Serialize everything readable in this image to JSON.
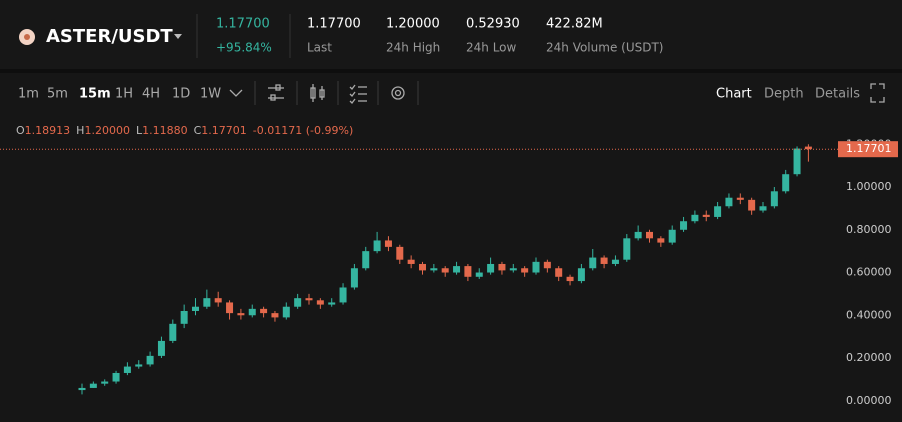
{
  "header": {
    "pair": "ASTER/USDT",
    "price": "1.17700",
    "change": "+95.84%",
    "stats": [
      {
        "value": "1.17700",
        "label": "Last"
      },
      {
        "value": "1.20000",
        "label": "24h High"
      },
      {
        "value": "0.52930",
        "label": "24h Low"
      },
      {
        "value": "422.82M",
        "label": "24h Volume (USDT)"
      }
    ]
  },
  "toolbar": {
    "intervals": [
      "1m",
      "5m",
      "15m",
      "1H",
      "4H",
      "1D",
      "1W"
    ],
    "active": "15m",
    "views": [
      "Chart",
      "Depth",
      "Details"
    ],
    "active_view": "Chart"
  },
  "chart_data": {
    "type": "candlestick",
    "ohlc_legend": {
      "open": {
        "key": "O",
        "value": 1.18913,
        "label": "1.18913"
      },
      "high": {
        "key": "H",
        "value": 1.2,
        "label": "1.20000"
      },
      "low": {
        "key": "L",
        "value": 1.1188,
        "label": "1.11880"
      },
      "close": {
        "key": "C",
        "value": 1.17701,
        "label": "1.17701"
      },
      "change": "-0.01171 (-0.99%)"
    },
    "candles": [
      [
        0.05,
        0.08,
        0.03,
        0.06
      ],
      [
        0.06,
        0.09,
        0.06,
        0.08
      ],
      [
        0.08,
        0.1,
        0.07,
        0.09
      ],
      [
        0.09,
        0.14,
        0.08,
        0.13
      ],
      [
        0.13,
        0.18,
        0.12,
        0.16
      ],
      [
        0.16,
        0.19,
        0.15,
        0.17
      ],
      [
        0.17,
        0.23,
        0.16,
        0.21
      ],
      [
        0.21,
        0.3,
        0.2,
        0.28
      ],
      [
        0.28,
        0.38,
        0.27,
        0.36
      ],
      [
        0.36,
        0.45,
        0.34,
        0.42
      ],
      [
        0.42,
        0.48,
        0.4,
        0.44
      ],
      [
        0.44,
        0.52,
        0.43,
        0.48
      ],
      [
        0.48,
        0.51,
        0.44,
        0.46
      ],
      [
        0.46,
        0.47,
        0.38,
        0.41
      ],
      [
        0.41,
        0.43,
        0.38,
        0.4
      ],
      [
        0.4,
        0.45,
        0.39,
        0.43
      ],
      [
        0.43,
        0.44,
        0.39,
        0.41
      ],
      [
        0.41,
        0.42,
        0.37,
        0.39
      ],
      [
        0.39,
        0.46,
        0.38,
        0.44
      ],
      [
        0.44,
        0.5,
        0.43,
        0.48
      ],
      [
        0.48,
        0.5,
        0.45,
        0.47
      ],
      [
        0.47,
        0.48,
        0.43,
        0.45
      ],
      [
        0.45,
        0.48,
        0.44,
        0.46
      ],
      [
        0.46,
        0.55,
        0.45,
        0.53
      ],
      [
        0.53,
        0.64,
        0.52,
        0.62
      ],
      [
        0.62,
        0.72,
        0.61,
        0.7
      ],
      [
        0.7,
        0.79,
        0.69,
        0.75
      ],
      [
        0.75,
        0.77,
        0.7,
        0.72
      ],
      [
        0.72,
        0.73,
        0.64,
        0.66
      ],
      [
        0.66,
        0.68,
        0.62,
        0.64
      ],
      [
        0.64,
        0.65,
        0.59,
        0.61
      ],
      [
        0.61,
        0.64,
        0.6,
        0.62
      ],
      [
        0.62,
        0.63,
        0.58,
        0.6
      ],
      [
        0.6,
        0.65,
        0.59,
        0.63
      ],
      [
        0.63,
        0.64,
        0.56,
        0.58
      ],
      [
        0.58,
        0.62,
        0.57,
        0.6
      ],
      [
        0.6,
        0.67,
        0.59,
        0.64
      ],
      [
        0.64,
        0.65,
        0.59,
        0.61
      ],
      [
        0.61,
        0.64,
        0.6,
        0.62
      ],
      [
        0.62,
        0.63,
        0.58,
        0.6
      ],
      [
        0.6,
        0.67,
        0.59,
        0.65
      ],
      [
        0.65,
        0.66,
        0.6,
        0.62
      ],
      [
        0.62,
        0.63,
        0.56,
        0.58
      ],
      [
        0.58,
        0.59,
        0.54,
        0.56
      ],
      [
        0.56,
        0.64,
        0.55,
        0.62
      ],
      [
        0.62,
        0.71,
        0.61,
        0.67
      ],
      [
        0.67,
        0.68,
        0.62,
        0.64
      ],
      [
        0.64,
        0.68,
        0.63,
        0.66
      ],
      [
        0.66,
        0.78,
        0.65,
        0.76
      ],
      [
        0.76,
        0.82,
        0.75,
        0.79
      ],
      [
        0.79,
        0.8,
        0.74,
        0.76
      ],
      [
        0.76,
        0.77,
        0.72,
        0.74
      ],
      [
        0.74,
        0.82,
        0.73,
        0.8
      ],
      [
        0.8,
        0.86,
        0.79,
        0.84
      ],
      [
        0.84,
        0.89,
        0.83,
        0.87
      ],
      [
        0.87,
        0.89,
        0.84,
        0.86
      ],
      [
        0.86,
        0.93,
        0.85,
        0.91
      ],
      [
        0.91,
        0.97,
        0.9,
        0.95
      ],
      [
        0.95,
        0.97,
        0.92,
        0.94
      ],
      [
        0.94,
        0.95,
        0.87,
        0.89
      ],
      [
        0.89,
        0.93,
        0.88,
        0.91
      ],
      [
        0.91,
        1.0,
        0.9,
        0.98
      ],
      [
        0.98,
        1.08,
        0.97,
        1.06
      ],
      [
        1.06,
        1.19,
        1.05,
        1.18
      ]
    ],
    "ylim": [
      -0.09,
      1.22
    ],
    "yticks": [
      {
        "value": 0,
        "label": "0.00000"
      },
      {
        "value": 0.2,
        "label": "0.20000"
      },
      {
        "value": 0.4,
        "label": "0.40000"
      },
      {
        "value": 0.6,
        "label": "0.60000"
      },
      {
        "value": 0.8,
        "label": "0.80000"
      },
      {
        "value": 1.0,
        "label": "1.00000"
      },
      {
        "value": 1.2,
        "label": "1.20000"
      }
    ],
    "up_color": "#35b5a0",
    "down_color": "#e4694c",
    "last_price_line": true
  }
}
